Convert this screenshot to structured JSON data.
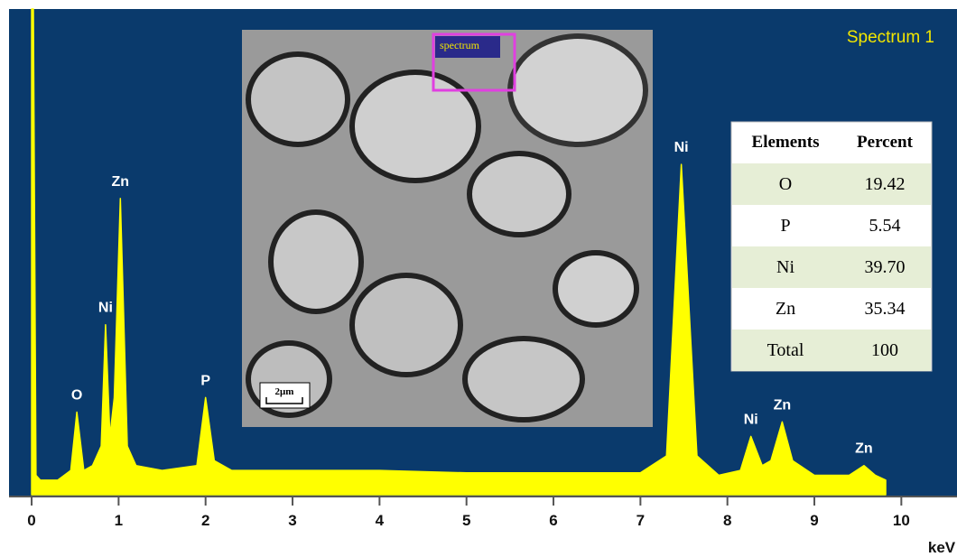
{
  "chart_data": {
    "type": "line",
    "title": "Spectrum 1",
    "x_label": "keV",
    "x": [
      0,
      0.02,
      0.05,
      0.1,
      0.3,
      0.45,
      0.52,
      0.6,
      0.7,
      0.8,
      0.85,
      0.9,
      0.95,
      1.02,
      1.1,
      1.2,
      1.5,
      1.9,
      2.0,
      2.1,
      2.3,
      3,
      4,
      5,
      6,
      7,
      7.3,
      7.47,
      7.65,
      7.9,
      8.15,
      8.27,
      8.4,
      8.5,
      8.63,
      8.75,
      9.0,
      9.4,
      9.57,
      9.7,
      9.82
    ],
    "values": [
      100,
      100,
      4,
      3,
      3,
      5,
      17,
      5,
      6,
      10,
      35,
      12,
      20,
      61,
      10,
      6,
      5,
      6,
      20,
      7,
      5,
      5,
      5,
      4.5,
      4.5,
      4.5,
      8,
      68,
      8,
      4,
      5,
      12,
      6,
      7,
      15,
      7,
      4,
      4,
      6,
      4,
      3
    ],
    "color": "#ffff00",
    "xlim": [
      -0.26,
      10.64
    ],
    "xticks": [
      0,
      1,
      2,
      3,
      4,
      5,
      6,
      7,
      8,
      9,
      10
    ],
    "ylim": [
      0,
      100
    ],
    "annotations": [
      {
        "text": "O",
        "x": 0.52
      },
      {
        "text": "Ni",
        "x": 0.85
      },
      {
        "text": "Zn",
        "x": 1.02
      },
      {
        "text": "P",
        "x": 2.0
      },
      {
        "text": "Ni",
        "x": 7.47
      },
      {
        "text": "Ni",
        "x": 8.27
      },
      {
        "text": "Zn",
        "x": 8.63
      },
      {
        "text": "Zn",
        "x": 9.57
      }
    ]
  },
  "inset": {
    "label": "spectrum",
    "scale": "2μm"
  },
  "table": {
    "header": [
      "Elements",
      "Percent"
    ],
    "rows": [
      [
        "O",
        "19.42"
      ],
      [
        "P",
        "5.54"
      ],
      [
        "Ni",
        "39.70"
      ],
      [
        "Zn",
        "35.34"
      ],
      [
        "Total",
        "100"
      ]
    ]
  }
}
